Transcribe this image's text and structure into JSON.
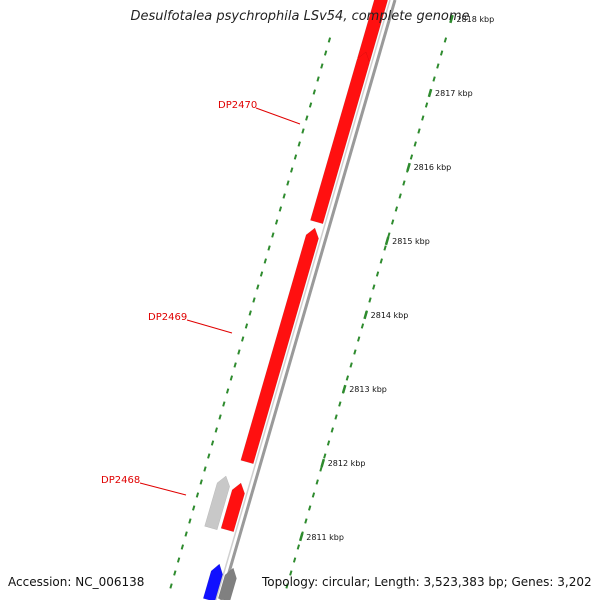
{
  "title": "Desulfotalea psychrophila LSv54, complete genome",
  "footer": {
    "accession": "Accession: NC_006138",
    "topology": "Topology: circular; Length: 3,523,383 bp; Genes: 3,202"
  },
  "ruler_unit": "kbp",
  "ruler_ticks": [
    {
      "kbp": 2811,
      "label": "2811 kbp"
    },
    {
      "kbp": 2812,
      "label": "2812 kbp"
    },
    {
      "kbp": 2813,
      "label": "2813 kbp"
    },
    {
      "kbp": 2814,
      "label": "2814 kbp"
    },
    {
      "kbp": 2815,
      "label": "2815 kbp"
    },
    {
      "kbp": 2816,
      "label": "2816 kbp"
    },
    {
      "kbp": 2817,
      "label": "2817 kbp"
    },
    {
      "kbp": 2818,
      "label": "2818 kbp"
    }
  ],
  "gene_labels": [
    {
      "name": "DP2470"
    },
    {
      "name": "DP2469"
    },
    {
      "name": "DP2468"
    }
  ],
  "colors": {
    "gene_red": "#ff1010",
    "gene_grey": "#c8c8c8",
    "gene_blue": "#1010ff",
    "gene_dark": "#808080",
    "backbone": "#9a9a9a",
    "tick_green": "#2e8b2e",
    "label_red": "#e00000"
  }
}
